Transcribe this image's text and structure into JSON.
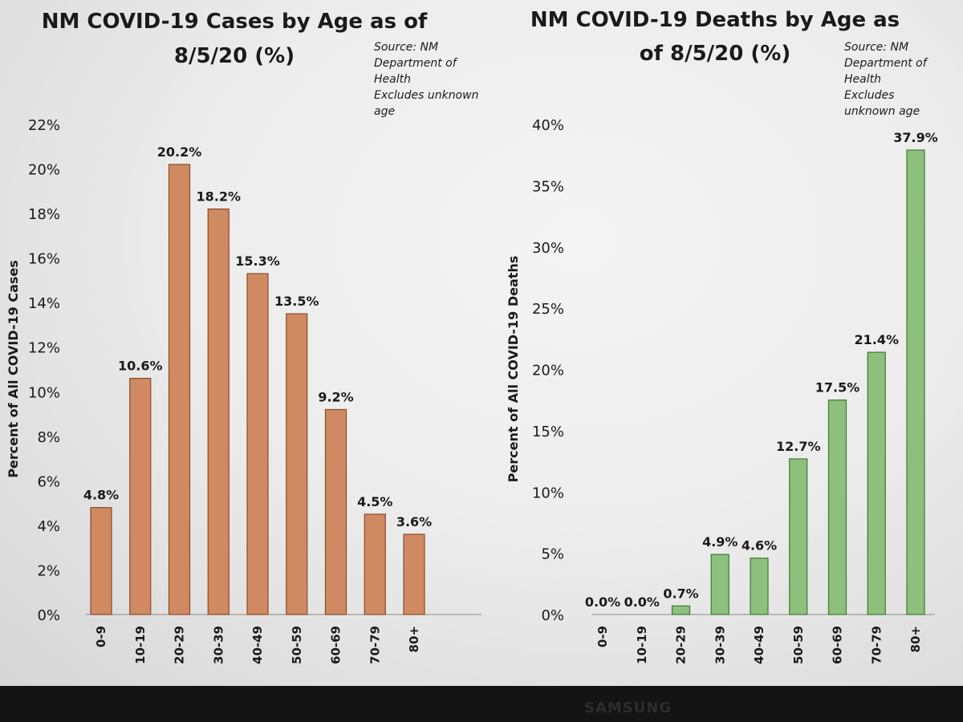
{
  "chart_data": [
    {
      "type": "bar",
      "title_lines": [
        "NM COVID-19 Cases by Age as of",
        "8/5/20 (%)"
      ],
      "note_lines": [
        "Source: NM",
        "Department of",
        "Health",
        "Excludes unknown",
        "age"
      ],
      "ylabel": "Percent of All COVID-19 Cases",
      "categories": [
        "0-9",
        "10-19",
        "20-29",
        "30-39",
        "40-49",
        "50-59",
        "60-69",
        "70-79",
        "80+"
      ],
      "values": [
        4.8,
        10.6,
        20.2,
        18.2,
        15.3,
        13.5,
        9.2,
        4.5,
        3.6
      ],
      "data_labels": [
        "4.8%",
        "10.6%",
        "20.2%",
        "18.2%",
        "15.3%",
        "13.5%",
        "9.2%",
        "4.5%",
        "3.6%"
      ],
      "ylim": [
        0,
        22
      ],
      "yticks": [
        0,
        2,
        4,
        6,
        8,
        10,
        12,
        14,
        16,
        18,
        20,
        22
      ],
      "ytick_labels": [
        "0%",
        "2%",
        "4%",
        "6%",
        "8%",
        "10%",
        "12%",
        "14%",
        "16%",
        "18%",
        "20%",
        "22%"
      ],
      "bar_color": "#d08a62",
      "bar_edge": "#8a4a2a",
      "grid": false,
      "legend": "none"
    },
    {
      "type": "bar",
      "title_lines": [
        "NM COVID-19 Deaths by Age as",
        "of 8/5/20 (%)"
      ],
      "note_lines": [
        "Source: NM",
        "Department of",
        "Health",
        "Excludes",
        "unknown age"
      ],
      "ylabel": "Percent of All COVID-19 Deaths",
      "categories": [
        "0-9",
        "10-19",
        "20-29",
        "30-39",
        "40-49",
        "50-59",
        "60-69",
        "70-79",
        "80+"
      ],
      "values": [
        0.0,
        0.0,
        0.7,
        4.9,
        4.6,
        12.7,
        17.5,
        21.4,
        37.9
      ],
      "data_labels": [
        "0.0%",
        "0.0%",
        "0.7%",
        "4.9%",
        "4.6%",
        "12.7%",
        "17.5%",
        "21.4%",
        "37.9%"
      ],
      "ylim": [
        0,
        40
      ],
      "yticks": [
        0,
        5,
        10,
        15,
        20,
        25,
        30,
        35,
        40
      ],
      "ytick_labels": [
        "0%",
        "5%",
        "10%",
        "15%",
        "20%",
        "25%",
        "30%",
        "35%",
        "40%"
      ],
      "bar_color": "#8dc07c",
      "bar_edge": "#3f7a36",
      "grid": false,
      "legend": "none"
    }
  ],
  "device_brand": "SAMSUNG"
}
